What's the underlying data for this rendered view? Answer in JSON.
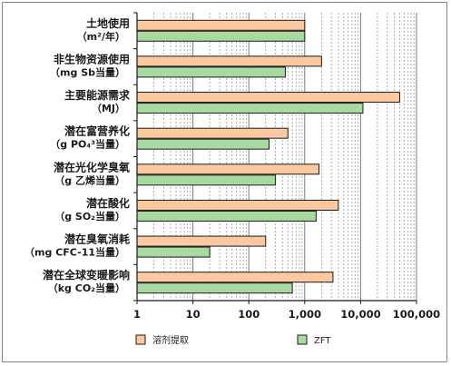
{
  "chart_data": {
    "type": "bar",
    "orientation": "horizontal",
    "x_scale": "log",
    "xlim": [
      1,
      100000
    ],
    "grid": true,
    "legend_position": "bottom",
    "categories": [
      {
        "line1": "土地使用",
        "line2": "（m²/年）"
      },
      {
        "line1": "非生物资源使用",
        "line2": "（mg Sb当量）"
      },
      {
        "line1": "主要能源需求",
        "line2": "（MJ）"
      },
      {
        "line1": "潜在富营养化",
        "line2": "（g PO₄³当量）"
      },
      {
        "line1": "潜在光化学臭氧",
        "line2": "（g 乙烯当量）"
      },
      {
        "line1": "潜在酸化",
        "line2": "（g SO₂当量）"
      },
      {
        "line1": "潜在臭氧消耗",
        "line2": "（mg CFC-11当量）"
      },
      {
        "line1": "潜在全球变暖影响",
        "line2": "（kg CO₂当量）"
      }
    ],
    "series": [
      {
        "name": "溶剂提取",
        "color": "#fcc8a0",
        "values": [
          1000,
          2000,
          50000,
          500,
          1800,
          4000,
          200,
          3200
        ]
      },
      {
        "name": "ZFT",
        "color": "#a7d9a0",
        "values": [
          1000,
          450,
          11000,
          230,
          300,
          1600,
          20,
          600
        ]
      }
    ],
    "x_ticks": [
      {
        "value": 1,
        "label": "1"
      },
      {
        "value": 10,
        "label": "10"
      },
      {
        "value": 100,
        "label": "100"
      },
      {
        "value": 1000,
        "label": "1,000"
      },
      {
        "value": 10000,
        "label": "10,000"
      },
      {
        "value": 100000,
        "label": "100,000"
      }
    ]
  }
}
